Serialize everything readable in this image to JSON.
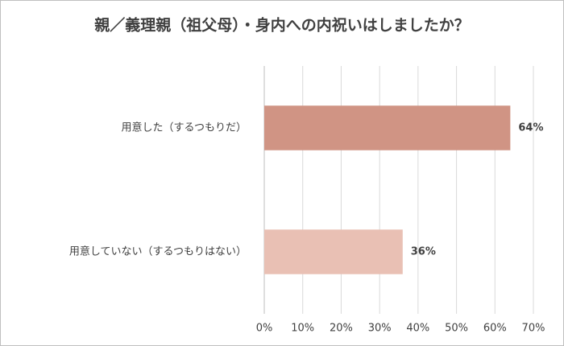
{
  "chart_data": {
    "type": "bar",
    "orientation": "horizontal",
    "title": "親／義理親（祖父母）・身内への内祝いはしましたか？",
    "categories": [
      "用意した（するつもりだ）",
      "用意していない（するつもりはない）"
    ],
    "values": [
      64,
      36
    ],
    "value_labels": [
      "64%",
      "36%"
    ],
    "colors": [
      "#d09484",
      "#e9c0b4"
    ],
    "xlim": [
      0,
      70
    ],
    "xticks": [
      {
        "value": 0,
        "label": "0%"
      },
      {
        "value": 10,
        "label": "10%"
      },
      {
        "value": 20,
        "label": "20%"
      },
      {
        "value": 30,
        "label": "30%"
      },
      {
        "value": 40,
        "label": "40%"
      },
      {
        "value": 50,
        "label": "50%"
      },
      {
        "value": 60,
        "label": "60%"
      },
      {
        "value": 70,
        "label": "70%"
      }
    ],
    "grid": true
  }
}
